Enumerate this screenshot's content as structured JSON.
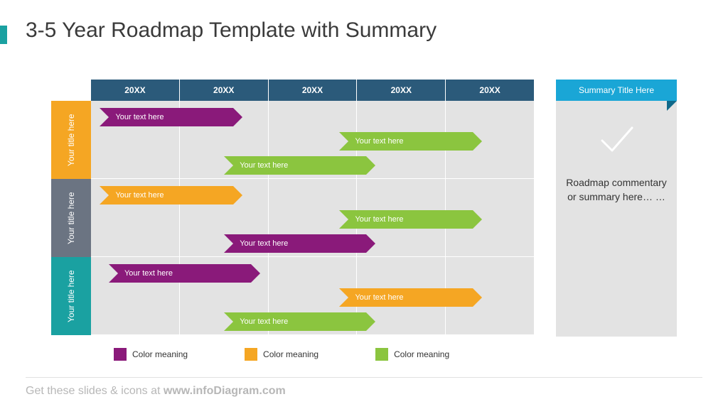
{
  "page": {
    "title": "3-5 Year Roadmap Template with Summary",
    "accent_color": "#1aa1a1",
    "footer_prefix": "Get these slides & icons at ",
    "footer_bold": "www.infoDiagram.com"
  },
  "chart": {
    "grid_bg": "#e3e3e3",
    "year_header_bg": "#2b5a7a",
    "years": [
      "20XX",
      "20XX",
      "20XX",
      "20XX",
      "20XX"
    ],
    "lanes": [
      {
        "label": "Your title here",
        "color": "#f5a623",
        "bars": [
          {
            "text": "Your text here",
            "start_pct": 2,
            "width_pct": 30,
            "color": "#8a1a7a",
            "notch": "#e3e3e3"
          },
          {
            "text": "Your text here",
            "start_pct": 56,
            "width_pct": 30,
            "color": "#8bc53f",
            "notch": "#e3e3e3",
            "row": 1
          },
          {
            "text": "Your text here",
            "start_pct": 30,
            "width_pct": 32,
            "color": "#8bc53f",
            "notch": "#e3e3e3",
            "row": 2
          }
        ]
      },
      {
        "label": "Your title here",
        "color": "#6b7482",
        "bars": [
          {
            "text": "Your text here",
            "start_pct": 2,
            "width_pct": 30,
            "color": "#f5a623",
            "notch": "#e3e3e3"
          },
          {
            "text": "Your text here",
            "start_pct": 56,
            "width_pct": 30,
            "color": "#8bc53f",
            "notch": "#e3e3e3",
            "row": 1
          },
          {
            "text": "Your text here",
            "start_pct": 30,
            "width_pct": 32,
            "color": "#8a1a7a",
            "notch": "#e3e3e3",
            "row": 2
          }
        ]
      },
      {
        "label": "Your title here",
        "color": "#1aa1a1",
        "bars": [
          {
            "text": "Your text here",
            "start_pct": 4,
            "width_pct": 32,
            "color": "#8a1a7a",
            "notch": "#e3e3e3"
          },
          {
            "text": "Your text here",
            "start_pct": 56,
            "width_pct": 30,
            "color": "#f5a623",
            "notch": "#e3e3e3",
            "row": 1
          },
          {
            "text": "Your text here",
            "start_pct": 30,
            "width_pct": 32,
            "color": "#8bc53f",
            "notch": "#e3e3e3",
            "row": 2
          }
        ]
      }
    ]
  },
  "legend": {
    "items": [
      {
        "color": "#8a1a7a",
        "label": "Color meaning"
      },
      {
        "color": "#f5a623",
        "label": "Color meaning"
      },
      {
        "color": "#8bc53f",
        "label": "Color meaning"
      }
    ]
  },
  "summary": {
    "header_bg": "#1aa6d6",
    "fold_color": "#10698a",
    "title": "Summary Title Here",
    "text": "Roadmap commentary or summary here… …",
    "check_color": "#ffffff"
  }
}
